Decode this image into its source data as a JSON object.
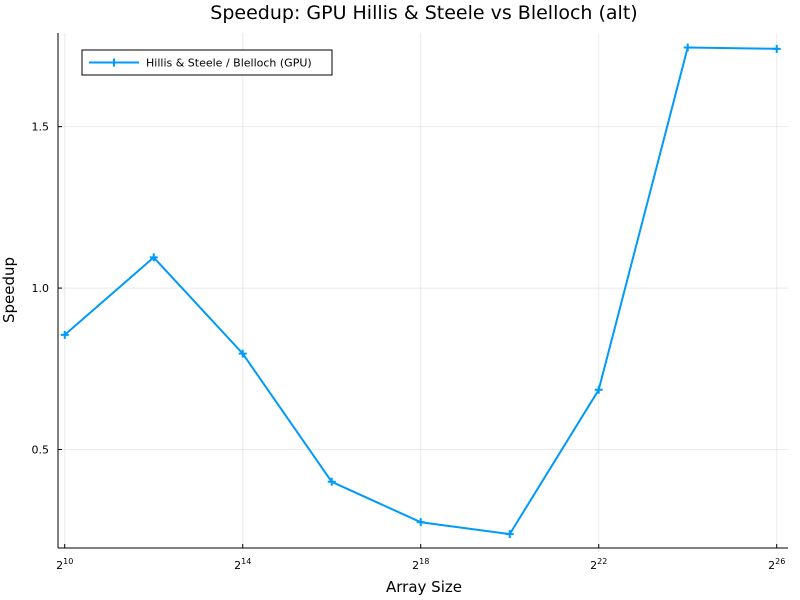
{
  "chart_data": {
    "type": "line",
    "title": "Speedup: GPU Hillis & Steele vs Blelloch (alt)",
    "xlabel": "Array Size",
    "ylabel": "Speedup",
    "x_scale": "log2",
    "x_ticks": [
      {
        "base": "2",
        "exp": "10",
        "value": 1024
      },
      {
        "base": "2",
        "exp": "14",
        "value": 16384
      },
      {
        "base": "2",
        "exp": "18",
        "value": 262144
      },
      {
        "base": "2",
        "exp": "22",
        "value": 4194304
      },
      {
        "base": "2",
        "exp": "26",
        "value": 67108864
      }
    ],
    "y_ticks": [
      "0.5",
      "1.0",
      "1.5"
    ],
    "xlim": [
      922,
      80000000
    ],
    "ylim": [
      0.195,
      1.79
    ],
    "grid": true,
    "legend_position": "top-left",
    "series": [
      {
        "name": "Hillis & Steele / Blelloch (GPU)",
        "color": "#009AFA",
        "marker": "cross",
        "x": [
          1024,
          4096,
          16384,
          65536,
          262144,
          1048576,
          4194304,
          16777216,
          67108864
        ],
        "y": [
          0.855,
          1.095,
          0.797,
          0.4,
          0.275,
          0.238,
          0.685,
          1.745,
          1.741
        ]
      }
    ]
  }
}
